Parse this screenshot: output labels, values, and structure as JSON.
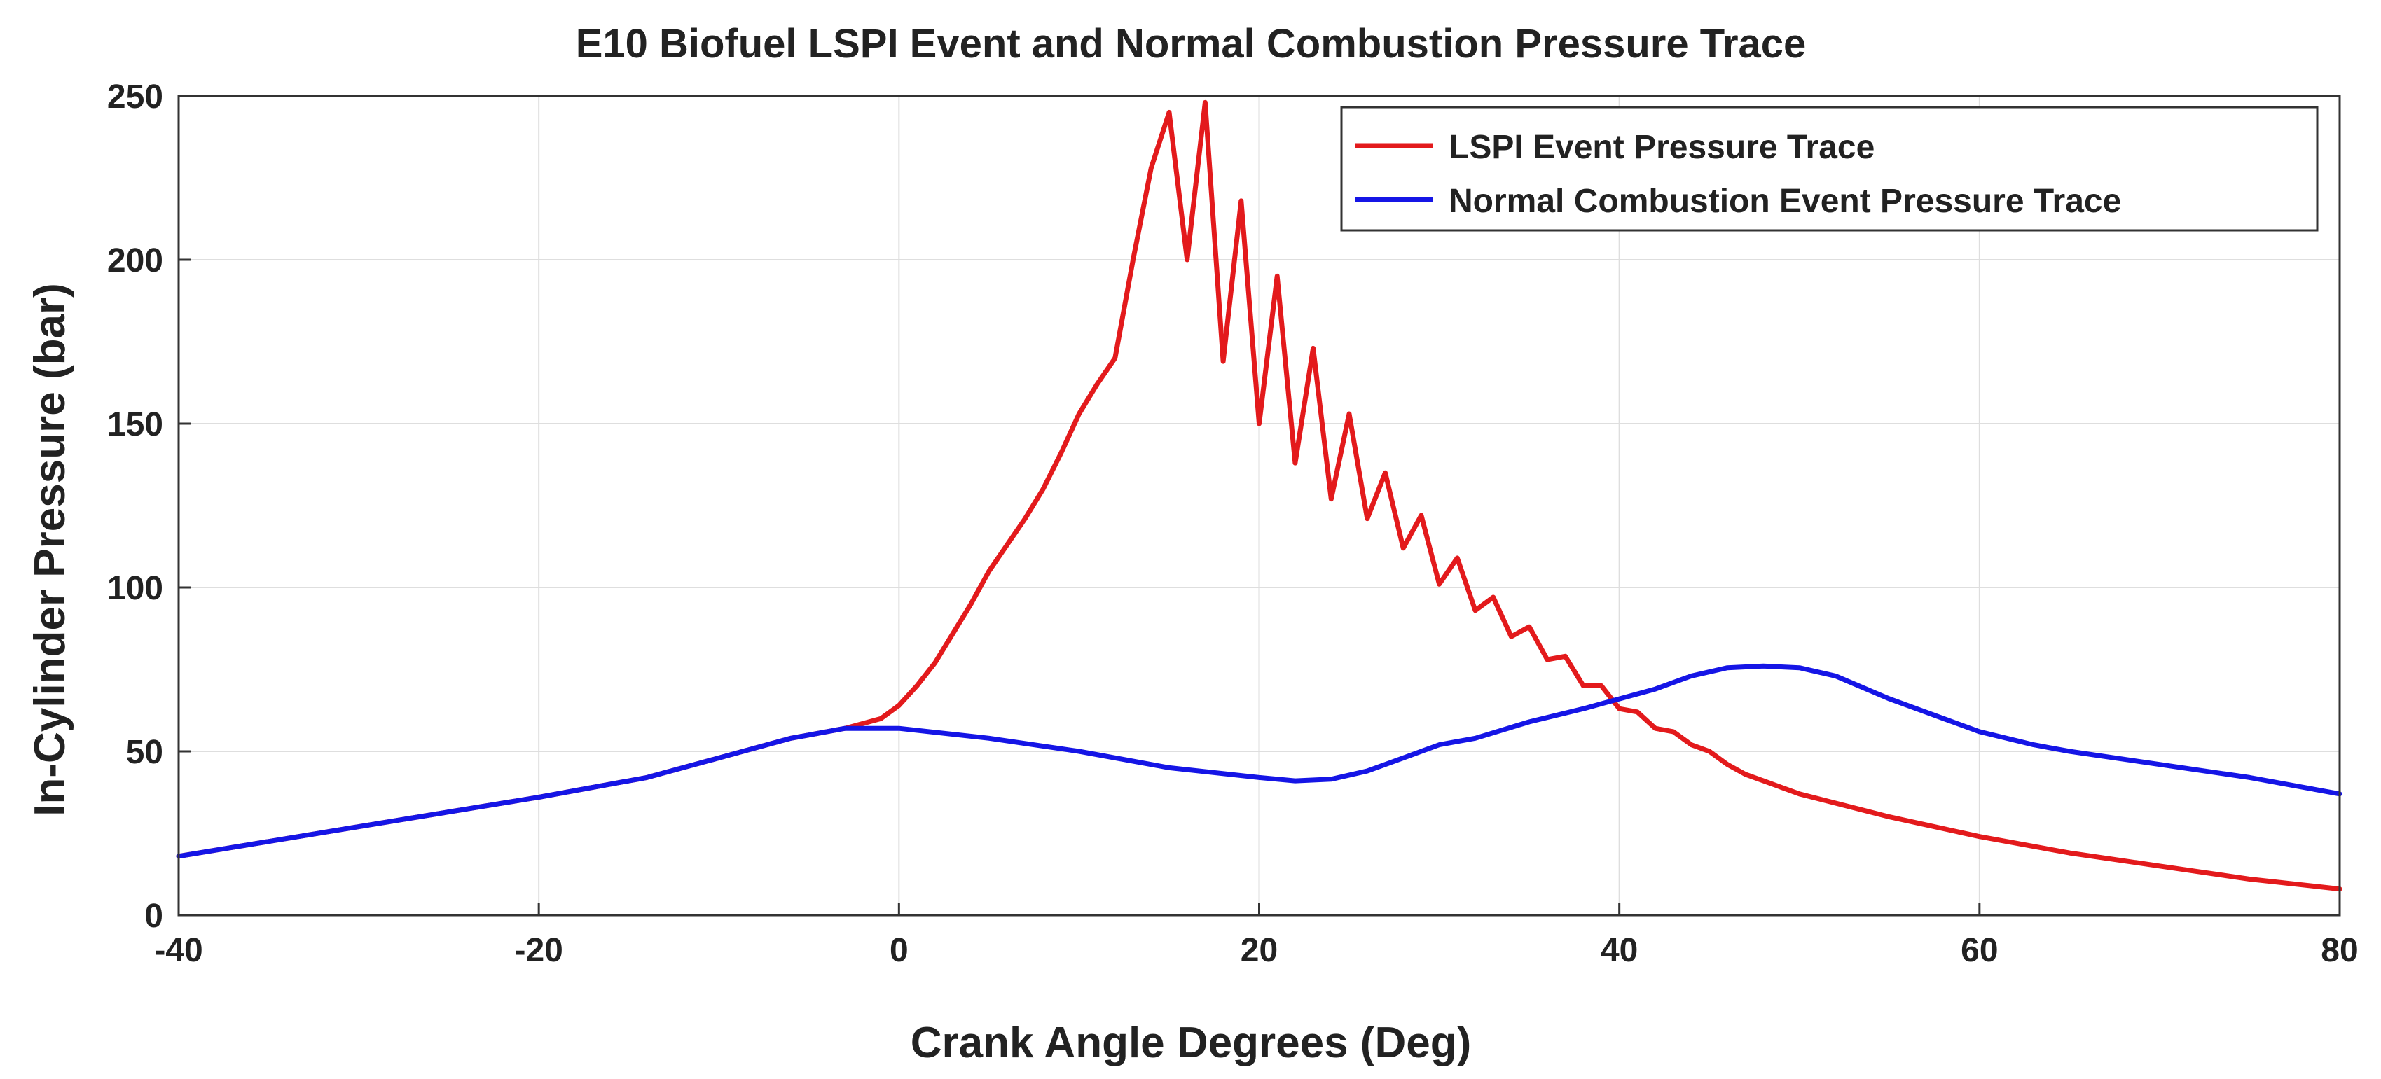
{
  "chart_data": {
    "type": "line",
    "title": "E10 Biofuel LSPI Event and Normal Combustion Pressure Trace",
    "xlabel": "Crank Angle Degrees (Deg)",
    "ylabel": "In-Cylinder Pressure (bar)",
    "xlim": [
      -40,
      80
    ],
    "ylim": [
      0,
      250
    ],
    "xticks": [
      -40,
      -20,
      0,
      20,
      40,
      60,
      80
    ],
    "yticks": [
      0,
      50,
      100,
      150,
      200,
      250
    ],
    "grid": true,
    "legend_position": "top-right",
    "series": [
      {
        "name": "LSPI Event Pressure Trace",
        "color": "#e31a1c",
        "x": [
          -40,
          -30,
          -20,
          -14,
          -10,
          -6,
          -3,
          -1,
          0,
          1,
          2,
          3,
          4,
          5,
          6,
          7,
          8,
          9,
          10,
          11,
          12,
          13,
          14,
          15,
          16,
          17,
          18,
          19,
          20,
          21,
          22,
          23,
          24,
          25,
          26,
          27,
          28,
          29,
          30,
          31,
          32,
          33,
          34,
          35,
          36,
          37,
          38,
          39,
          40,
          41,
          42,
          43,
          44,
          45,
          46,
          47,
          48,
          50,
          55,
          60,
          65,
          70,
          75,
          80
        ],
        "y": [
          18,
          27,
          36,
          42,
          48,
          54,
          57,
          60,
          64,
          70,
          77,
          86,
          95,
          105,
          113,
          121,
          130,
          141,
          153,
          162,
          170,
          200,
          228,
          245,
          200,
          248,
          169,
          218,
          150,
          195,
          138,
          173,
          127,
          153,
          121,
          135,
          112,
          122,
          101,
          109,
          93,
          97,
          85,
          88,
          78,
          79,
          70,
          70,
          63,
          62,
          57,
          56,
          52,
          50,
          46,
          43,
          41,
          37,
          30,
          24,
          19,
          15,
          11,
          8
        ]
      },
      {
        "name": "Normal Combustion Event Pressure Trace",
        "color": "#1515e6",
        "x": [
          -40,
          -30,
          -20,
          -14,
          -10,
          -6,
          -3,
          -1,
          0,
          5,
          10,
          15,
          20,
          22,
          24,
          26,
          28,
          30,
          32,
          35,
          38,
          40,
          42,
          44,
          46,
          48,
          50,
          52,
          55,
          58,
          60,
          63,
          65,
          70,
          75,
          80
        ],
        "y": [
          18,
          27,
          36,
          42,
          48,
          54,
          57,
          57,
          57,
          54,
          50,
          45,
          42,
          41,
          41.5,
          44,
          48,
          52,
          54,
          59,
          63,
          66,
          69,
          73,
          75.5,
          76,
          75.5,
          73,
          66,
          60,
          56,
          52,
          50,
          46,
          42,
          37
        ]
      }
    ]
  }
}
